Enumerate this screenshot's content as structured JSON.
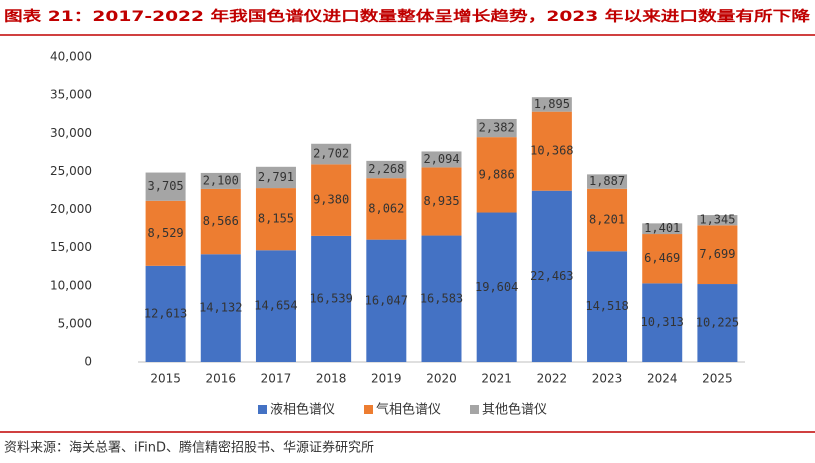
{
  "title": "图表 21：2017-2022 年我国色谱仪进口数量整体呈增长趋势，2023 年以来进口数量有所下降",
  "source": "资料来源：海关总署、iFinD、腾信精密招股书、华源证券研究所",
  "chart_data": {
    "type": "stacked-bar",
    "categories": [
      "2015",
      "2016",
      "2017",
      "2018",
      "2019",
      "2020",
      "2021",
      "2022",
      "2023",
      "2024",
      "2025"
    ],
    "series": [
      {
        "name": "液相色谱仪",
        "color": "#4472c4",
        "values": [
          12613,
          14132,
          14654,
          16539,
          16047,
          16583,
          19604,
          22463,
          14518,
          10313,
          10225
        ],
        "value_labels": [
          "12,613",
          "14,132",
          "14,654",
          "16,539",
          "16,047",
          "16,583",
          "19,604",
          "22,463",
          "14,518",
          "10,313",
          "10,225"
        ]
      },
      {
        "name": "气相色谱仪",
        "color": "#ed7d31",
        "values": [
          8529,
          8566,
          8155,
          9380,
          8062,
          8935,
          9886,
          10368,
          8201,
          6469,
          7699
        ],
        "value_labels": [
          "8,529",
          "8,566",
          "8,155",
          "9,380",
          "8,062",
          "8,935",
          "9,886",
          "10,368",
          "8,201",
          "6,469",
          "7,699"
        ]
      },
      {
        "name": "其他色谱仪",
        "color": "#a5a5a5",
        "values": [
          3705,
          2100,
          2791,
          2702,
          2268,
          2094,
          2382,
          1895,
          1887,
          1401,
          1345
        ],
        "value_labels": [
          "3,705",
          "2,100",
          "2,791",
          "2,702",
          "2,268",
          "2,094",
          "2,382",
          "1,895",
          "1,887",
          "1,401",
          "1,345"
        ]
      }
    ],
    "ylim": [
      0,
      40000
    ],
    "yticks": [
      0,
      {
        "value": 5000,
        "label": "5,000"
      },
      {
        "value": 10000,
        "label": "10,000"
      },
      {
        "value": 15000,
        "label": "15,000"
      },
      {
        "value": 20000,
        "label": "20,000"
      },
      {
        "value": 25000,
        "label": "25,000"
      },
      {
        "value": 30000,
        "label": "30,000"
      },
      {
        "value": 35000,
        "label": "35,000"
      },
      {
        "value": 40000,
        "label": "40,000"
      }
    ],
    "legend": "bottom"
  }
}
